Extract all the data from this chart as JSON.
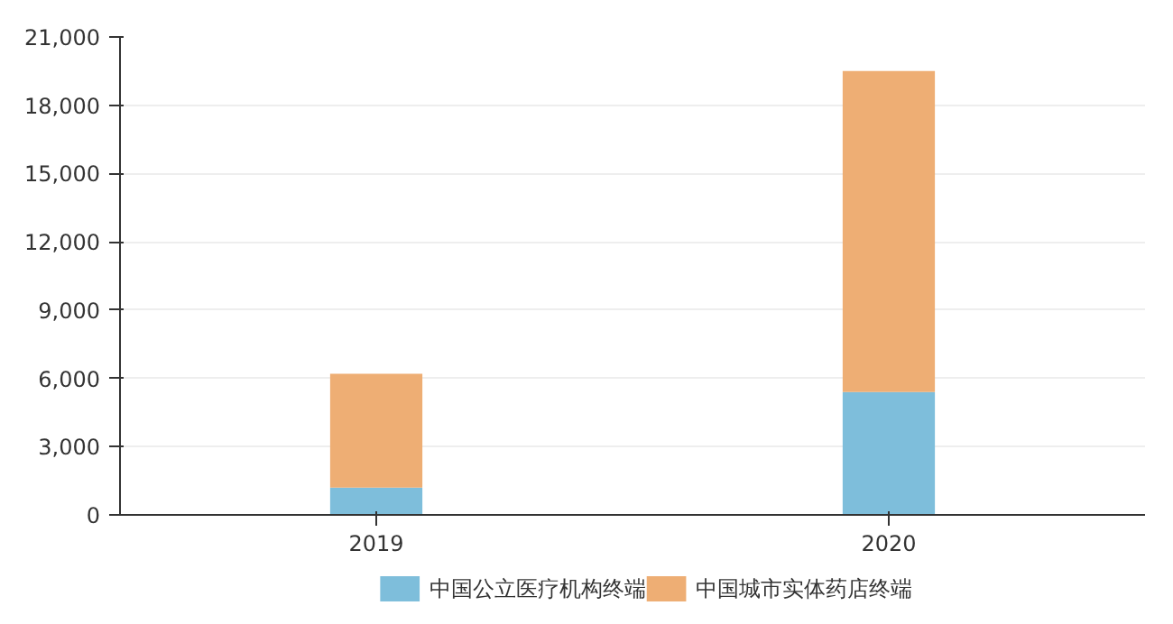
{
  "chart_data": {
    "type": "bar",
    "stacked": true,
    "categories": [
      "2019",
      "2020"
    ],
    "series": [
      {
        "name": "中国公立医疗机构终端",
        "color": "#7ebedb",
        "values": [
          1200,
          5400
        ]
      },
      {
        "name": "中国城市实体药店终端",
        "color": "#eeae74",
        "values": [
          5000,
          14100
        ]
      }
    ],
    "ylim": [
      0,
      21000
    ],
    "yticks": [
      {
        "value": 0,
        "label": "0"
      },
      {
        "value": 3000,
        "label": "3,000"
      },
      {
        "value": 6000,
        "label": "6,000"
      },
      {
        "value": 9000,
        "label": "9,000"
      },
      {
        "value": 12000,
        "label": "12,000"
      },
      {
        "value": 15000,
        "label": "15,000"
      },
      {
        "value": 18000,
        "label": "18,000"
      },
      {
        "value": 21000,
        "label": "21,000"
      }
    ],
    "grid": "y",
    "legend": "bottom"
  }
}
